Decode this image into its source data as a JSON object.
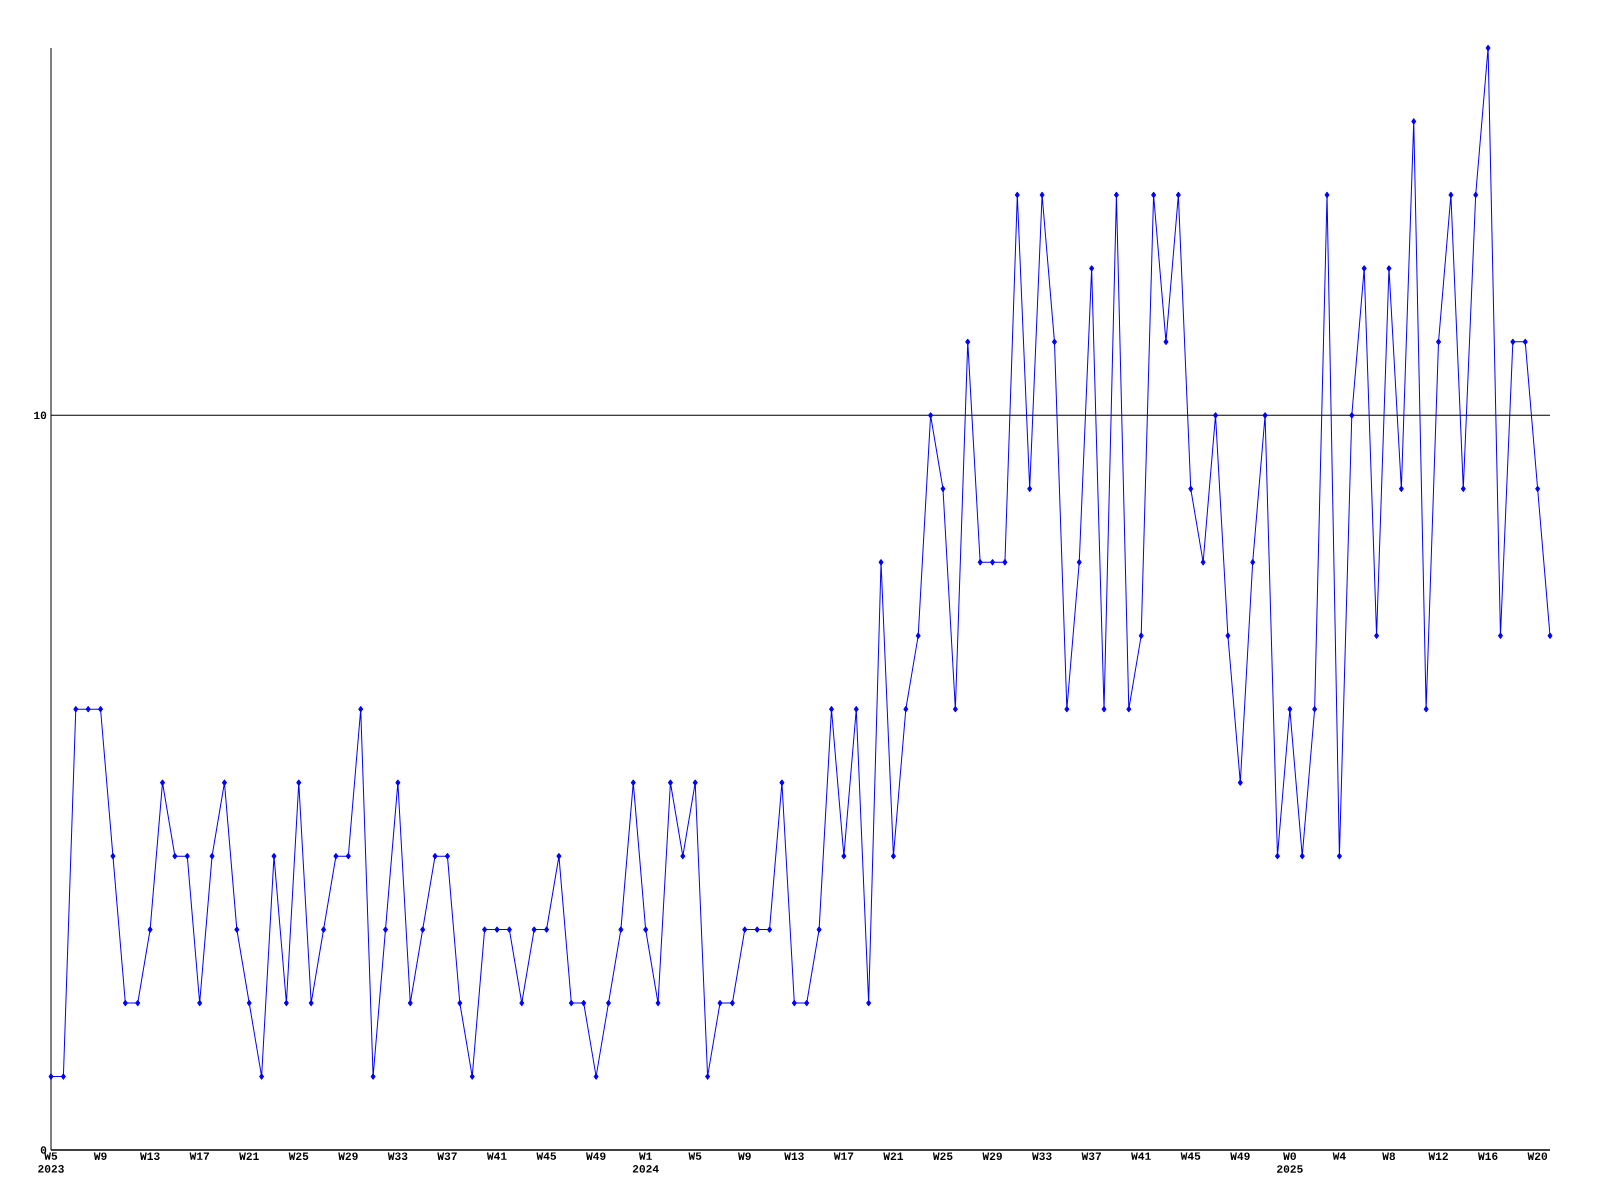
{
  "chart_data": {
    "type": "line",
    "categories": [
      "W5 2023",
      null,
      null,
      null,
      "W9",
      null,
      null,
      null,
      "W13",
      null,
      null,
      null,
      "W17",
      null,
      null,
      null,
      "W21",
      null,
      null,
      null,
      "W25",
      null,
      null,
      null,
      "W29",
      null,
      null,
      null,
      "W33",
      null,
      null,
      null,
      "W37",
      null,
      null,
      null,
      "W41",
      null,
      null,
      null,
      "W45",
      null,
      null,
      null,
      "W49",
      null,
      null,
      null,
      "W1 2024",
      null,
      null,
      null,
      "W5",
      null,
      null,
      null,
      "W9",
      null,
      null,
      null,
      "W13",
      null,
      null,
      null,
      "W17",
      null,
      null,
      null,
      "W21",
      null,
      null,
      null,
      "W25",
      null,
      null,
      null,
      "W29",
      null,
      null,
      null,
      "W33",
      null,
      null,
      null,
      "W37",
      null,
      null,
      null,
      "W41",
      null,
      null,
      null,
      "W45",
      null,
      null,
      null,
      "W49",
      null,
      null,
      null,
      "W0 2025",
      null,
      null,
      null,
      "W4",
      null,
      null,
      null,
      "W8",
      null,
      null,
      null,
      "W12",
      null,
      null,
      null,
      "W16",
      null,
      null,
      null,
      "W20",
      null
    ],
    "series": [
      {
        "color": "#0000ff",
        "values": [
          1,
          1,
          6,
          6,
          6,
          4,
          2,
          2,
          3,
          5,
          4,
          4,
          2,
          4,
          5,
          3,
          2,
          1,
          4,
          2,
          5,
          2,
          3,
          4,
          4,
          6,
          1,
          3,
          5,
          2,
          3,
          4,
          4,
          2,
          1,
          3,
          3,
          3,
          2,
          3,
          3,
          4,
          2,
          2,
          1,
          2,
          3,
          5,
          3,
          2,
          5,
          4,
          5,
          1,
          2,
          2,
          3,
          3,
          3,
          5,
          2,
          2,
          3,
          6,
          4,
          6,
          2,
          8,
          4,
          6,
          7,
          10,
          9,
          6,
          11,
          8,
          8,
          8,
          13,
          9,
          13,
          11,
          6,
          8,
          12,
          6,
          13,
          6,
          7,
          13,
          11,
          13,
          9,
          8,
          10,
          7,
          5,
          8,
          10,
          4,
          6,
          4,
          6,
          13,
          4,
          10,
          12,
          7,
          12,
          9,
          14,
          6,
          11,
          13,
          9,
          13,
          15,
          7,
          11,
          11,
          9,
          7
        ]
      }
    ],
    "ylim": [
      0,
      15
    ],
    "yticks": [
      0,
      10
    ],
    "grid": "y",
    "marker": "diamond",
    "line_style": "solid"
  }
}
